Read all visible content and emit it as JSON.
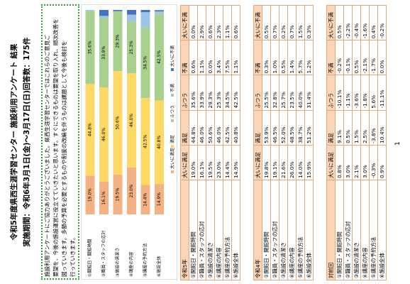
{
  "header": {
    "title": "令和5年度県西生涯学習センター 施設利用アンケート 結果",
    "period": "実施期間：令和6年3月1日(金)～3月17日(日)回答数：175件"
  },
  "notice": {
    "lines": [
      "施設利用アンケートにご協力ありがとうございました。県西生涯学習センターではこれらのご意見ご",
      "要望を、今後の施設運営に役立てていきたいと思います。すぐにできるものは要望を取り入れ、順次改善を",
      "図っていきます。多額の予算を必要とするものや制度の改編を伴うものは課題として今後も検討を",
      "行っていきます。"
    ]
  },
  "chart_data": {
    "type": "stacked-bar",
    "categories": [
      "①開館日・開館時間",
      "②職員・スタッフの応対",
      "③施設の清潔さ",
      "④講座の内容",
      "⑤講座の予約方法",
      "⑥施設全体"
    ],
    "xlim": [
      0,
      100
    ],
    "series": [
      {
        "name": "大いに満足",
        "color": "#f4b183",
        "values": [
          19.0,
          16.1,
          19.5,
          23.0,
          14.4,
          14.9
        ],
        "value_labels": [
          "19.0%",
          "16.1%",
          "19.5%",
          "23.0%",
          "14.4%",
          "14.9%"
        ]
      },
      {
        "name": "満足",
        "color": "#ffd966",
        "values": [
          44.8,
          46.0,
          50.6,
          46.0,
          42.5,
          40.8
        ],
        "value_labels": [
          "44.8%",
          "46.0%",
          "50.6%",
          "46.0%",
          "42.5%",
          "40.8%"
        ]
      },
      {
        "name": "ふつう",
        "color": "#a9d08e",
        "values": [
          35.6,
          33.9,
          29.3,
          25.3,
          34.5,
          42.5
        ],
        "value_labels": [
          "35.6%",
          "33.9%",
          "29.3%",
          "25.3%",
          "34.5%",
          "42.5%"
        ]
      },
      {
        "name": "不満",
        "color": "#9dc3e6",
        "values": [
          0.6,
          1.1,
          0.0,
          3.4,
          7.5,
          1.1
        ]
      },
      {
        "name": "大いに不満",
        "color": "#4472c4",
        "values": [
          0.0,
          2.9,
          0.6,
          2.3,
          1.1,
          0.6
        ]
      }
    ]
  },
  "tables": [
    {
      "columns": [
        "令和5年",
        "大いに満足",
        "満足",
        "ふつう",
        "不満",
        "大いに不満"
      ],
      "rows": [
        [
          "①開館日・開館時間",
          "19.0%",
          "44.8%",
          "35.6%",
          "0.6%",
          "0.0%"
        ],
        [
          "②職員・スタッフの応対",
          "16.1%",
          "46.0%",
          "33.9%",
          "1.1%",
          "2.9%"
        ],
        [
          "③施設の清潔さ",
          "19.5%",
          "50.6%",
          "29.3%",
          "0.0%",
          "0.6%"
        ],
        [
          "④講座の内容",
          "23.0%",
          "46.0%",
          "25.3%",
          "3.4%",
          "2.3%"
        ],
        [
          "⑤講座の予約方法",
          "14.4%",
          "42.5%",
          "34.5%",
          "7.5%",
          "1.1%"
        ],
        [
          "⑥施設全体",
          "14.9%",
          "40.8%",
          "42.5%",
          "1.1%",
          "0.6%"
        ]
      ]
    },
    {
      "columns": [
        "令和4年",
        "大いに満足",
        "満足",
        "ふつう",
        "不満",
        "大いに不満"
      ],
      "rows": [
        [
          "①開館日・開館時間",
          "19.8%",
          "53.9%",
          "25.5%",
          "0.3%",
          "0.5%"
        ],
        [
          "②職員・スタッフの応対",
          "19.1%",
          "46.5%",
          "32.8%",
          "1.0%",
          "0.7%"
        ],
        [
          "③施設の清潔さ",
          "21.6%",
          "52.0%",
          "25.7%",
          "0.5%",
          "0.2%"
        ],
        [
          "④講座の内容",
          "26.0%",
          "48.5%",
          "23.5%",
          "1.4%",
          "0.7%"
        ],
        [
          "⑤講座の予約方法",
          "14.0%",
          "38.7%",
          "40.0%",
          "5.7%",
          "1.5%"
        ],
        [
          "⑥施設全体",
          "15.9%",
          "51.2%",
          "31.4%",
          "1.2%",
          "0.3%"
        ]
      ]
    },
    {
      "columns": [
        "対前回",
        "大いに満足",
        "満足",
        "ふつう",
        "不満",
        "大いに不満"
      ],
      "rows": [
        [
          "①開館日・開館時間",
          "0.8%",
          "9.1%",
          "-10.1%",
          "-0.2%",
          "0.5%"
        ],
        [
          "②職員・スタッフの応対",
          "3.0%",
          "0.5%",
          "-1.1%",
          "-0.1%",
          "-2.2%"
        ],
        [
          "③施設の清潔さ",
          "2.1%",
          "1.5%",
          "-3.6%",
          "0.5%",
          "-0.4%"
        ],
        [
          "④講座の内容",
          "3.0%",
          "2.5%",
          "-1.8%",
          "-2.1%",
          "-1.6%"
        ],
        [
          "⑤講座の予約方法",
          "-0.3%",
          "-3.8%",
          "5.6%",
          "-1.7%",
          "0.4%"
        ],
        [
          "⑥施設全体",
          "0.9%",
          "10.4%",
          "-11.1%",
          "0.0%",
          "-0.2%"
        ]
      ]
    }
  ],
  "page_number": "1"
}
